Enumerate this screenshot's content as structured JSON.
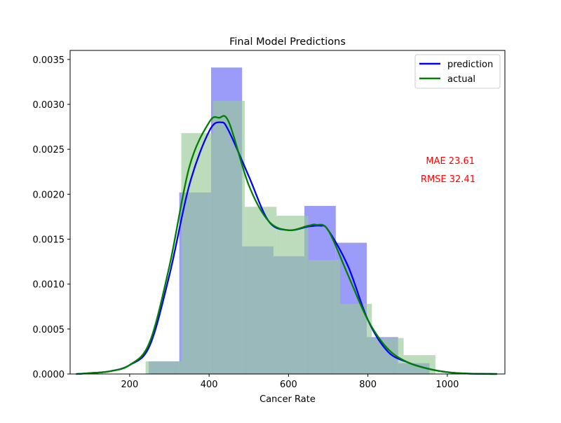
{
  "chart_data": {
    "type": "bar",
    "title": "Final Model Predictions",
    "xlabel": "Cancer Rate",
    "ylabel": "",
    "xlim": [
      50,
      1145
    ],
    "ylim": [
      0,
      0.0036
    ],
    "x_ticks": [
      "200",
      "400",
      "600",
      "800",
      "1000"
    ],
    "x_tick_values": [
      200,
      400,
      600,
      800,
      1000
    ],
    "y_ticks": [
      "0.0000",
      "0.0005",
      "0.0010",
      "0.0015",
      "0.0020",
      "0.0025",
      "0.0030",
      "0.0035"
    ],
    "y_tick_values": [
      0,
      0.0005,
      0.001,
      0.0015,
      0.002,
      0.0025,
      0.003,
      0.0035
    ],
    "grid": false,
    "legend_position": "top-right",
    "colors": {
      "prediction": "#0000ff",
      "actual": "#008000",
      "prediction_bars": "#9b9bf9",
      "actual_bars": "#98c998",
      "overlap": "#5b9199",
      "annotation": "#ff0000"
    },
    "histograms": [
      {
        "name": "prediction",
        "bins": [
          {
            "x0": 248,
            "x1": 325,
            "density": 0.00014
          },
          {
            "x0": 325,
            "x1": 405,
            "density": 0.00202
          },
          {
            "x0": 405,
            "x1": 483,
            "density": 0.00341
          },
          {
            "x0": 483,
            "x1": 562,
            "density": 0.00142
          },
          {
            "x0": 562,
            "x1": 640,
            "density": 0.00131
          },
          {
            "x0": 640,
            "x1": 719,
            "density": 0.00187
          },
          {
            "x0": 719,
            "x1": 797,
            "density": 0.00146
          },
          {
            "x0": 797,
            "x1": 876,
            "density": 0.00041
          },
          {
            "x0": 876,
            "x1": 955,
            "density": 0.00012
          }
        ]
      },
      {
        "name": "actual",
        "bins": [
          {
            "x0": 240,
            "x1": 330,
            "density": 0.00014
          },
          {
            "x0": 330,
            "x1": 410,
            "density": 0.00268
          },
          {
            "x0": 410,
            "x1": 490,
            "density": 0.00304
          },
          {
            "x0": 490,
            "x1": 570,
            "density": 0.00186
          },
          {
            "x0": 570,
            "x1": 650,
            "density": 0.00176
          },
          {
            "x0": 650,
            "x1": 730,
            "density": 0.00127
          },
          {
            "x0": 730,
            "x1": 810,
            "density": 0.00078
          },
          {
            "x0": 810,
            "x1": 890,
            "density": 0.0004
          },
          {
            "x0": 890,
            "x1": 970,
            "density": 0.00021
          }
        ]
      }
    ],
    "series": [
      {
        "name": "prediction",
        "x": [
          65,
          100,
          150,
          200,
          250,
          300,
          350,
          400,
          430,
          450,
          500,
          550,
          600,
          650,
          680,
          700,
          750,
          800,
          850,
          900,
          950,
          1000,
          1050,
          1125
        ],
        "y": [
          0.0,
          1e-05,
          3e-05,
          0.0001,
          0.00031,
          0.0011,
          0.0021,
          0.0027,
          0.0028,
          0.0027,
          0.0022,
          0.0017,
          0.0016,
          0.00164,
          0.00165,
          0.0016,
          0.0012,
          0.0006,
          0.00025,
          0.00013,
          6e-05,
          2e-05,
          5e-06,
          0.0
        ]
      },
      {
        "name": "actual",
        "x": [
          65,
          100,
          150,
          200,
          250,
          300,
          350,
          400,
          425,
          450,
          500,
          550,
          600,
          650,
          670,
          700,
          750,
          800,
          850,
          900,
          950,
          1000,
          1050,
          1125
        ],
        "y": [
          0.0,
          1e-05,
          3e-05,
          0.0001,
          0.00035,
          0.0012,
          0.0023,
          0.0028,
          0.00285,
          0.0028,
          0.0021,
          0.0017,
          0.0016,
          0.00165,
          0.00166,
          0.0016,
          0.0011,
          0.0006,
          0.00028,
          0.00013,
          6e-05,
          2e-05,
          5e-06,
          0.0
        ]
      }
    ],
    "legend": [
      "prediction",
      "actual"
    ],
    "annotations": [
      "MAE 23.61",
      "RMSE 32.41"
    ]
  }
}
